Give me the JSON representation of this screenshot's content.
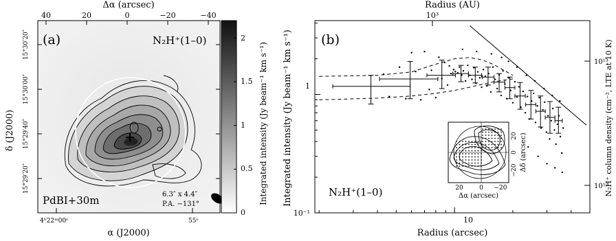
{
  "chart_data": [
    {
      "type": "heatmap",
      "panel_label": "(a)",
      "line_label": "N₂H⁺(1–0)",
      "instrument_label": "PdBI+30m",
      "beam_label_1": "6.3″ x 4.4″",
      "beam_label_2": "P.A. −131°",
      "xlabel": "α (J2000)",
      "ylabel": "δ (J2000)",
      "x2label": "Δα (arcsec)",
      "colorbar_label": "Integrated intensity (Jy beam⁻¹ km s⁻¹)",
      "x_ticks": [
        "4ʰ22ᵐ00ˢ",
        "55ˢ"
      ],
      "y_ticks": [
        "15°30′20″",
        "15°30′00″",
        "15°29′40″",
        "15°29′20″"
      ],
      "x2_ticks": [
        "40",
        "20",
        "0",
        "−20",
        "−40"
      ],
      "colorbar_ticks": [
        "0",
        "0.5",
        "1",
        "1.5",
        "2"
      ],
      "colorbar_range": [
        0,
        2.2
      ],
      "peak_offset_arcsec": [
        -13,
        -9
      ]
    },
    {
      "type": "scatter",
      "panel_label": "(b)",
      "line_label": "N₂H⁺(1–0)",
      "xlabel": "Radius (arcsec)",
      "ylabel": "Integrated intensity (Jy beam⁻¹ km s⁻¹)",
      "x2label": "Radius (AU)",
      "y2label": "N₂H⁺ column density (cm⁻², LTE at 10 K)",
      "x_scale": "log",
      "y_scale": "log",
      "xlim": [
        1.9,
        50
      ],
      "ylim": [
        0.1,
        4.2
      ],
      "x_ticks": [
        "10"
      ],
      "y_ticks": [
        "10⁻¹",
        "1"
      ],
      "x2_ticks": [
        "10³"
      ],
      "y2_ticks": [
        "10¹²",
        "10¹³"
      ],
      "binned": [
        {
          "x": 3.7,
          "y": 1.17,
          "xerr": [
            2.35,
            5.9
          ],
          "yerr": [
            0.83,
            1.45
          ]
        },
        {
          "x": 5.9,
          "y": 1.35,
          "xerr": [
            4.1,
            8.2
          ],
          "yerr": [
            0.92,
            1.9
          ]
        },
        {
          "x": 8.6,
          "y": 1.45,
          "xerr": [
            7.2,
            10.1
          ],
          "yerr": [
            1.12,
            1.95
          ]
        },
        {
          "x": 10.8,
          "y": 1.5,
          "xerr": [
            9.8,
            11.8
          ],
          "yerr": [
            1.28,
            1.76
          ]
        },
        {
          "x": 12.8,
          "y": 1.45,
          "xerr": [
            11.8,
            13.8
          ],
          "yerr": [
            1.25,
            1.7
          ]
        },
        {
          "x": 14.9,
          "y": 1.4,
          "xerr": [
            13.9,
            16.0
          ],
          "yerr": [
            1.2,
            1.7
          ]
        },
        {
          "x": 17.0,
          "y": 1.27,
          "xerr": [
            16.0,
            18.2
          ],
          "yerr": [
            1.05,
            1.5
          ]
        },
        {
          "x": 19.3,
          "y": 1.14,
          "xerr": [
            18.2,
            20.5
          ],
          "yerr": [
            0.92,
            1.4
          ]
        },
        {
          "x": 21.8,
          "y": 0.97,
          "xerr": [
            20.5,
            23.2
          ],
          "yerr": [
            0.75,
            1.26
          ]
        },
        {
          "x": 24.8,
          "y": 0.82,
          "xerr": [
            23.3,
            26.3
          ],
          "yerr": [
            0.62,
            1.08
          ]
        },
        {
          "x": 27.8,
          "y": 0.72,
          "xerr": [
            26.3,
            29.4
          ],
          "yerr": [
            0.53,
            0.97
          ]
        },
        {
          "x": 31.1,
          "y": 0.64,
          "xerr": [
            29.4,
            33.0
          ],
          "yerr": [
            0.47,
            0.87
          ]
        },
        {
          "x": 34.4,
          "y": 0.6,
          "xerr": [
            33.0,
            36.0
          ],
          "yerr": [
            0.47,
            0.78
          ]
        }
      ],
      "points": [
        {
          "x": 4.3,
          "y": 1.48
        },
        {
          "x": 4.6,
          "y": 0.96
        },
        {
          "x": 5.2,
          "y": 1.7
        },
        {
          "x": 5.6,
          "y": 0.92
        },
        {
          "x": 6.0,
          "y": 2.25
        },
        {
          "x": 6.3,
          "y": 1.56
        },
        {
          "x": 6.7,
          "y": 0.9
        },
        {
          "x": 7.0,
          "y": 2.3
        },
        {
          "x": 7.4,
          "y": 1.1
        },
        {
          "x": 7.6,
          "y": 1.6
        },
        {
          "x": 8.0,
          "y": 0.94
        },
        {
          "x": 8.3,
          "y": 2.06
        },
        {
          "x": 8.6,
          "y": 1.36
        },
        {
          "x": 8.9,
          "y": 1.86
        },
        {
          "x": 9.2,
          "y": 1.2
        },
        {
          "x": 9.4,
          "y": 1.74
        },
        {
          "x": 9.6,
          "y": 1.5
        },
        {
          "x": 9.9,
          "y": 1.62
        },
        {
          "x": 10.1,
          "y": 1.56
        },
        {
          "x": 10.4,
          "y": 1.52
        },
        {
          "x": 10.6,
          "y": 1.7
        },
        {
          "x": 10.9,
          "y": 1.46
        },
        {
          "x": 11.1,
          "y": 1.58
        },
        {
          "x": 11.4,
          "y": 1.3
        },
        {
          "x": 11.7,
          "y": 1.76
        },
        {
          "x": 12.0,
          "y": 1.45
        },
        {
          "x": 12.3,
          "y": 1.34
        },
        {
          "x": 12.6,
          "y": 1.68
        },
        {
          "x": 12.9,
          "y": 1.24
        },
        {
          "x": 13.2,
          "y": 1.55
        },
        {
          "x": 13.5,
          "y": 1.38
        },
        {
          "x": 13.8,
          "y": 1.15
        },
        {
          "x": 14.1,
          "y": 1.62
        },
        {
          "x": 14.4,
          "y": 1.42
        },
        {
          "x": 14.7,
          "y": 1.18
        },
        {
          "x": 15.0,
          "y": 1.5
        },
        {
          "x": 15.4,
          "y": 1.05
        },
        {
          "x": 15.8,
          "y": 1.7
        },
        {
          "x": 16.2,
          "y": 1.34
        },
        {
          "x": 16.6,
          "y": 1.12
        },
        {
          "x": 17.0,
          "y": 1.46
        },
        {
          "x": 17.4,
          "y": 0.98
        },
        {
          "x": 17.8,
          "y": 1.58
        },
        {
          "x": 18.2,
          "y": 1.22
        },
        {
          "x": 18.6,
          "y": 0.92
        },
        {
          "x": 19.0,
          "y": 1.38
        },
        {
          "x": 19.5,
          "y": 1.08
        },
        {
          "x": 20.0,
          "y": 0.85
        },
        {
          "x": 20.5,
          "y": 1.28
        },
        {
          "x": 21.0,
          "y": 0.95
        },
        {
          "x": 21.5,
          "y": 1.16
        },
        {
          "x": 22.0,
          "y": 0.78
        },
        {
          "x": 22.6,
          "y": 1.06
        },
        {
          "x": 23.2,
          "y": 0.7
        },
        {
          "x": 23.8,
          "y": 0.96
        },
        {
          "x": 24.4,
          "y": 0.62
        },
        {
          "x": 25.0,
          "y": 0.88
        },
        {
          "x": 25.6,
          "y": 1.02
        },
        {
          "x": 26.2,
          "y": 0.58
        },
        {
          "x": 26.8,
          "y": 0.8
        },
        {
          "x": 27.4,
          "y": 0.94
        },
        {
          "x": 28.0,
          "y": 0.52
        },
        {
          "x": 28.6,
          "y": 0.74
        },
        {
          "x": 29.2,
          "y": 0.86
        },
        {
          "x": 29.8,
          "y": 0.48
        },
        {
          "x": 30.4,
          "y": 0.66
        },
        {
          "x": 31.0,
          "y": 0.42
        },
        {
          "x": 31.6,
          "y": 0.6
        },
        {
          "x": 32.2,
          "y": 0.76
        },
        {
          "x": 32.8,
          "y": 0.5
        },
        {
          "x": 33.4,
          "y": 0.38
        },
        {
          "x": 34.0,
          "y": 0.56
        },
        {
          "x": 34.6,
          "y": 0.66
        },
        {
          "x": 35.2,
          "y": 0.44
        },
        {
          "x": 35.8,
          "y": 0.32
        },
        {
          "x": 36.4,
          "y": 0.52
        },
        {
          "x": 19.0,
          "y": 1.9
        },
        {
          "x": 21.0,
          "y": 1.7
        },
        {
          "x": 23.5,
          "y": 1.45
        },
        {
          "x": 26.0,
          "y": 1.3
        },
        {
          "x": 29.0,
          "y": 1.12
        },
        {
          "x": 32.0,
          "y": 0.98
        },
        {
          "x": 35.0,
          "y": 0.88
        },
        {
          "x": 15.5,
          "y": 2.2
        },
        {
          "x": 27.0,
          "y": 0.3
        },
        {
          "x": 30.0,
          "y": 0.26
        },
        {
          "x": 33.0,
          "y": 0.24
        },
        {
          "x": 36.0,
          "y": 0.22
        },
        {
          "x": 24.0,
          "y": 0.36
        },
        {
          "x": 11.0,
          "y": 2.4
        },
        {
          "x": 13.0,
          "y": 2.3
        },
        {
          "x": 17.5,
          "y": 2.05
        }
      ],
      "power_law_fit": {
        "x": [
          12.0,
          48.0
        ],
        "y": [
          3.8,
          0.55
        ]
      },
      "model_upper": {
        "x": [
          2.0,
          4.0,
          6.0,
          8.0,
          10.0,
          12.0,
          14.0,
          16.0,
          18.0,
          20.0
        ],
        "y": [
          1.42,
          1.45,
          1.55,
          1.8,
          2.0,
          2.05,
          1.95,
          1.78,
          1.6,
          1.45
        ]
      },
      "model_lower": {
        "x": [
          2.0,
          4.0,
          6.0,
          8.0,
          10.0,
          12.0,
          14.0,
          16.0,
          18.0,
          20.0
        ],
        "y": [
          0.9,
          0.93,
          0.97,
          1.02,
          1.08,
          1.15,
          1.22,
          1.28,
          1.32,
          1.35
        ]
      },
      "inset": {
        "xlabel": "Δα (arcsec)",
        "ylabel": "Δδ (arcsec)",
        "x_ticks": [
          "20",
          "0",
          "−20"
        ],
        "y_ticks": [
          "20",
          "0",
          "−20"
        ]
      }
    }
  ]
}
